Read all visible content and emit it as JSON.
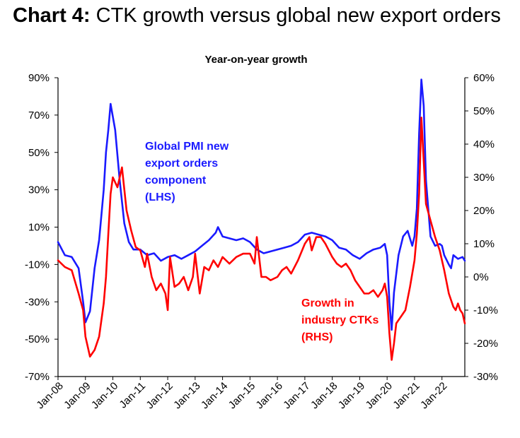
{
  "header": {
    "title_bold": "Chart 4:",
    "title_rest": "CTK growth versus global new export orders"
  },
  "colors": {
    "pmi": "#1a1aff",
    "ctk": "#ff0000"
  },
  "chart_data": {
    "type": "line",
    "subtitle": "Year-on-year growth",
    "x_ticks": [
      "Jan-08",
      "Jan-09",
      "Jan-10",
      "Jan-11",
      "Jan-12",
      "Jan-13",
      "Jan-14",
      "Jan-15",
      "Jan-16",
      "Jan-17",
      "Jan-18",
      "Jan-19",
      "Jan-20",
      "Jan-21",
      "Jan-22"
    ],
    "x_range": [
      "Jan-08",
      "Nov-22"
    ],
    "y_left": {
      "ticks": [
        "90%",
        "70%",
        "50%",
        "30%",
        "10%",
        "-10%",
        "-30%",
        "-50%",
        "-70%"
      ],
      "range": [
        -70,
        90
      ]
    },
    "y_right": {
      "ticks": [
        "60%",
        "50%",
        "40%",
        "30%",
        "20%",
        "10%",
        "0%",
        "-10%",
        "-20%",
        "-30%"
      ],
      "range": [
        -30,
        60
      ]
    },
    "grid": false,
    "annotations": {
      "pmi": [
        "Global PMI new",
        "export orders",
        "component",
        "(LHS)"
      ],
      "ctk": [
        "Growth in",
        "industry CTKs",
        "(RHS)"
      ]
    },
    "series": [
      {
        "axis": "left",
        "points": [
          [
            "Jan-08",
            2
          ],
          [
            "Apr-08",
            -5
          ],
          [
            "Jul-08",
            -6
          ],
          [
            "Oct-08",
            -12
          ],
          [
            "Dec-08",
            -30
          ],
          [
            "Jan-09",
            -41
          ],
          [
            "Mar-09",
            -35
          ],
          [
            "May-09",
            -12
          ],
          [
            "Jul-09",
            3
          ],
          [
            "Sep-09",
            30
          ],
          [
            "Oct-09",
            50
          ],
          [
            "Nov-09",
            62
          ],
          [
            "Dec-09",
            76
          ],
          [
            "Feb-10",
            62
          ],
          [
            "Apr-10",
            35
          ],
          [
            "Jun-10",
            12
          ],
          [
            "Aug-10",
            2
          ],
          [
            "Oct-10",
            -2
          ],
          [
            "Jan-11",
            -2
          ],
          [
            "Apr-11",
            -5
          ],
          [
            "Jul-11",
            -4
          ],
          [
            "Oct-11",
            -8
          ],
          [
            "Jan-12",
            -6
          ],
          [
            "Apr-12",
            -5
          ],
          [
            "Jul-12",
            -7
          ],
          [
            "Oct-12",
            -5
          ],
          [
            "Jan-13",
            -3
          ],
          [
            "Apr-13",
            0
          ],
          [
            "Jul-13",
            3
          ],
          [
            "Oct-13",
            7
          ],
          [
            "Nov-13",
            10
          ],
          [
            "Jan-14",
            5
          ],
          [
            "Apr-14",
            4
          ],
          [
            "Jul-14",
            3
          ],
          [
            "Oct-14",
            4
          ],
          [
            "Jan-15",
            2
          ],
          [
            "Apr-15",
            -2
          ],
          [
            "Jul-15",
            -4
          ],
          [
            "Oct-15",
            -3
          ],
          [
            "Jan-16",
            -2
          ],
          [
            "Apr-16",
            -1
          ],
          [
            "Jul-16",
            0
          ],
          [
            "Oct-16",
            2
          ],
          [
            "Jan-17",
            6
          ],
          [
            "Apr-17",
            7
          ],
          [
            "Jul-17",
            6
          ],
          [
            "Oct-17",
            5
          ],
          [
            "Jan-18",
            3
          ],
          [
            "Apr-18",
            -1
          ],
          [
            "Jul-18",
            -2
          ],
          [
            "Oct-18",
            -5
          ],
          [
            "Jan-19",
            -7
          ],
          [
            "Apr-19",
            -4
          ],
          [
            "Jul-19",
            -2
          ],
          [
            "Oct-19",
            -1
          ],
          [
            "Dec-19",
            1
          ],
          [
            "Jan-20",
            -5
          ],
          [
            "Feb-20",
            -30
          ],
          [
            "Mar-20",
            -45
          ],
          [
            "Apr-20",
            -25
          ],
          [
            "Jun-20",
            -5
          ],
          [
            "Aug-20",
            5
          ],
          [
            "Oct-20",
            8
          ],
          [
            "Dec-20",
            0
          ],
          [
            "Jan-21",
            5
          ],
          [
            "Feb-21",
            20
          ],
          [
            "Mar-21",
            60
          ],
          [
            "Apr-21",
            89
          ],
          [
            "May-21",
            75
          ],
          [
            "Jun-21",
            35
          ],
          [
            "Aug-21",
            5
          ],
          [
            "Oct-21",
            0
          ],
          [
            "Dec-21",
            1
          ],
          [
            "Jan-22",
            0
          ],
          [
            "Feb-22",
            -5
          ],
          [
            "Apr-22",
            -10
          ],
          [
            "May-22",
            -12
          ],
          [
            "Jun-22",
            -5
          ],
          [
            "Aug-22",
            -7
          ],
          [
            "Oct-22",
            -6
          ],
          [
            "Nov-22",
            -8
          ]
        ]
      },
      {
        "axis": "right",
        "points": [
          [
            "Jan-08",
            5
          ],
          [
            "Apr-08",
            3
          ],
          [
            "Jul-08",
            2
          ],
          [
            "Oct-08",
            -5
          ],
          [
            "Dec-08",
            -10
          ],
          [
            "Jan-09",
            -18
          ],
          [
            "Mar-09",
            -24
          ],
          [
            "May-09",
            -22
          ],
          [
            "Jul-09",
            -18
          ],
          [
            "Sep-09",
            -8
          ],
          [
            "Oct-09",
            0
          ],
          [
            "Nov-09",
            13
          ],
          [
            "Dec-09",
            25
          ],
          [
            "Jan-10",
            30
          ],
          [
            "Mar-10",
            27
          ],
          [
            "May-10",
            33
          ],
          [
            "Jul-10",
            20
          ],
          [
            "Sep-10",
            14
          ],
          [
            "Nov-10",
            9
          ],
          [
            "Jan-11",
            8
          ],
          [
            "Mar-11",
            3
          ],
          [
            "Apr-11",
            7
          ],
          [
            "Jun-11",
            0
          ],
          [
            "Aug-11",
            -4
          ],
          [
            "Oct-11",
            -2
          ],
          [
            "Dec-11",
            -5
          ],
          [
            "Jan-12",
            -10
          ],
          [
            "Feb-12",
            6
          ],
          [
            "Apr-12",
            -3
          ],
          [
            "Jun-12",
            -2
          ],
          [
            "Aug-12",
            0
          ],
          [
            "Oct-12",
            -4
          ],
          [
            "Dec-12",
            0
          ],
          [
            "Jan-13",
            7
          ],
          [
            "Mar-13",
            -5
          ],
          [
            "May-13",
            3
          ],
          [
            "Jul-13",
            2
          ],
          [
            "Sep-13",
            5
          ],
          [
            "Nov-13",
            3
          ],
          [
            "Jan-14",
            6
          ],
          [
            "Apr-14",
            4
          ],
          [
            "Jul-14",
            6
          ],
          [
            "Oct-14",
            7
          ],
          [
            "Jan-15",
            7
          ],
          [
            "Mar-15",
            4
          ],
          [
            "Apr-15",
            12
          ],
          [
            "Jun-15",
            0
          ],
          [
            "Aug-15",
            0
          ],
          [
            "Oct-15",
            -1
          ],
          [
            "Jan-16",
            0
          ],
          [
            "Mar-16",
            2
          ],
          [
            "May-16",
            3
          ],
          [
            "Jul-16",
            1
          ],
          [
            "Oct-16",
            5
          ],
          [
            "Jan-17",
            10
          ],
          [
            "Mar-17",
            12
          ],
          [
            "Apr-17",
            8
          ],
          [
            "Jun-17",
            12
          ],
          [
            "Aug-17",
            12
          ],
          [
            "Oct-17",
            10
          ],
          [
            "Jan-18",
            6
          ],
          [
            "Mar-18",
            4
          ],
          [
            "May-18",
            3
          ],
          [
            "Jul-18",
            4
          ],
          [
            "Sep-18",
            2
          ],
          [
            "Nov-18",
            -1
          ],
          [
            "Jan-19",
            -3
          ],
          [
            "Mar-19",
            -5
          ],
          [
            "May-19",
            -5
          ],
          [
            "Jul-19",
            -4
          ],
          [
            "Sep-19",
            -6
          ],
          [
            "Nov-19",
            -4
          ],
          [
            "Dec-19",
            -2
          ],
          [
            "Jan-20",
            -6
          ],
          [
            "Feb-20",
            -17
          ],
          [
            "Mar-20",
            -25
          ],
          [
            "Apr-20",
            -20
          ],
          [
            "May-20",
            -14
          ],
          [
            "Jul-20",
            -12
          ],
          [
            "Sep-20",
            -10
          ],
          [
            "Nov-20",
            -3
          ],
          [
            "Jan-21",
            5
          ],
          [
            "Feb-21",
            13
          ],
          [
            "Mar-21",
            25
          ],
          [
            "Apr-21",
            48
          ],
          [
            "May-21",
            35
          ],
          [
            "Jun-21",
            22
          ],
          [
            "Aug-21",
            17
          ],
          [
            "Oct-21",
            12
          ],
          [
            "Dec-21",
            8
          ],
          [
            "Feb-22",
            2
          ],
          [
            "Apr-22",
            -5
          ],
          [
            "Jun-22",
            -9
          ],
          [
            "Jul-22",
            -10
          ],
          [
            "Aug-22",
            -8
          ],
          [
            "Sep-22",
            -10
          ],
          [
            "Oct-22",
            -11
          ],
          [
            "Nov-22",
            -14
          ]
        ]
      }
    ]
  }
}
